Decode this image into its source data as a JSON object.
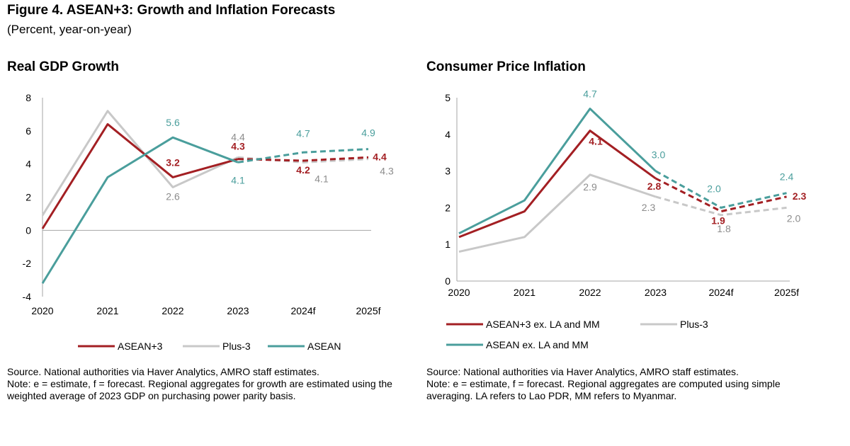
{
  "figure": {
    "title": "Figure 4. ASEAN+3: Growth and Inflation Forecasts",
    "subtitle": "(Percent, year-on-year)"
  },
  "chart_data": [
    {
      "type": "line",
      "title": "Real GDP Growth",
      "x": [
        "2020",
        "2021",
        "2022",
        "2023",
        "2024f",
        "2025f"
      ],
      "ylim": [
        -4,
        8
      ],
      "yticks": [
        -4,
        -2,
        0,
        2,
        4,
        6,
        8
      ],
      "forecast_start_index": 3,
      "legend_position": "bottom",
      "series": [
        {
          "name": "ASEAN+3",
          "color": "#a31f23",
          "values": [
            0.1,
            6.4,
            3.2,
            4.3,
            4.2,
            4.4
          ],
          "labels": [
            null,
            null,
            "3.2",
            "4.3",
            "4.2",
            "4.4"
          ]
        },
        {
          "name": "Plus-3",
          "color": "#c8c8c8",
          "values": [
            0.9,
            7.2,
            2.6,
            4.4,
            4.1,
            4.3
          ],
          "labels": [
            null,
            null,
            "2.6",
            "4.4",
            "4.1",
            "4.3"
          ]
        },
        {
          "name": "ASEAN",
          "color": "#4a9e9c",
          "values": [
            -3.2,
            3.2,
            5.6,
            4.1,
            4.7,
            4.9
          ],
          "labels": [
            null,
            null,
            "5.6",
            "4.1",
            "4.7",
            "4.9"
          ]
        }
      ]
    },
    {
      "type": "line",
      "title": "Consumer Price Inflation",
      "x": [
        "2020",
        "2021",
        "2022",
        "2023",
        "2024f",
        "2025f"
      ],
      "ylim": [
        0,
        5
      ],
      "yticks": [
        0,
        1,
        2,
        3,
        4,
        5
      ],
      "forecast_start_index": 3,
      "legend_position": "bottom",
      "series": [
        {
          "name": "ASEAN+3 ex. LA and MM",
          "color": "#a31f23",
          "values": [
            1.2,
            1.9,
            4.1,
            2.8,
            1.9,
            2.3
          ],
          "labels": [
            null,
            null,
            "4.1",
            "2.8",
            "1.9",
            "2.3"
          ]
        },
        {
          "name": "Plus-3",
          "color": "#c8c8c8",
          "values": [
            0.8,
            1.2,
            2.9,
            2.3,
            1.8,
            2.0
          ],
          "labels": [
            null,
            null,
            "2.9",
            "2.3",
            "1.8",
            "2.0"
          ]
        },
        {
          "name": "ASEAN ex. LA and MM",
          "color": "#4a9e9c",
          "values": [
            1.3,
            2.2,
            4.7,
            3.0,
            2.0,
            2.4
          ],
          "labels": [
            null,
            null,
            "4.7",
            "3.0",
            "2.0",
            "2.4"
          ]
        }
      ]
    }
  ],
  "notes": {
    "left": {
      "source": "Source. National authorities via Haver Analytics, AMRO staff estimates.",
      "note": "Note: e = estimate, f = forecast. Regional aggregates for growth are estimated using the weighted average of 2023 GDP on purchasing power parity basis."
    },
    "right": {
      "source": "Source: National authorities via Haver Analytics, AMRO staff estimates.",
      "note": "Note: e = estimate, f = forecast. Regional aggregates are computed using simple averaging. LA refers to Lao PDR, MM refers to Myanmar."
    }
  }
}
